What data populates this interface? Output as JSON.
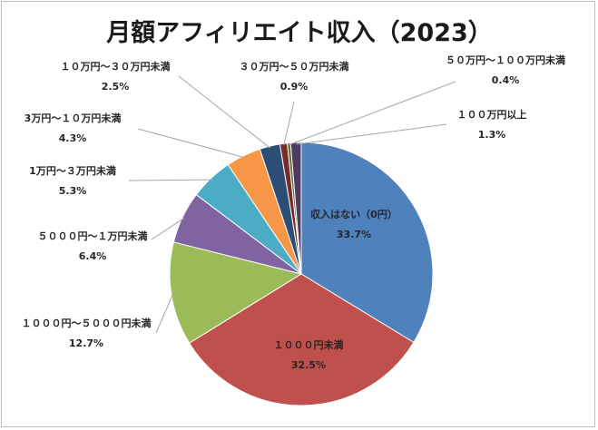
{
  "chart_data": {
    "type": "pie",
    "title": "月額アフィリエイト収入（2023）",
    "slices": [
      {
        "label": "収入はない（0円）",
        "value": 33.7,
        "display": "33.7%",
        "color": "#4f81bd"
      },
      {
        "label": "１０００円未満",
        "value": 32.5,
        "display": "32.5%",
        "color": "#c0504d"
      },
      {
        "label": "１０００円～５０００円未満",
        "value": 12.7,
        "display": "12.7%",
        "color": "#9bbb59"
      },
      {
        "label": "５０００円～１万円未満",
        "value": 6.4,
        "display": "6.4%",
        "color": "#8064a2"
      },
      {
        "label": "1万円～３万円未満",
        "value": 5.3,
        "display": "5.3%",
        "color": "#4bacc6"
      },
      {
        "label": "3万円～１０万円未満",
        "value": 4.3,
        "display": "4.3%",
        "color": "#f79646"
      },
      {
        "label": "１０万円～３０万円未満",
        "value": 2.5,
        "display": "2.5%",
        "color": "#2c4d75"
      },
      {
        "label": "３０万円～５０万円未満",
        "value": 0.9,
        "display": "0.9%",
        "color": "#772c2a"
      },
      {
        "label": "５０万円～１００万円未満",
        "value": 0.4,
        "display": "0.4%",
        "color": "#5f7530"
      },
      {
        "label": "１００万円以上",
        "value": 1.3,
        "display": "1.3%",
        "color": "#4d3b62"
      }
    ]
  }
}
